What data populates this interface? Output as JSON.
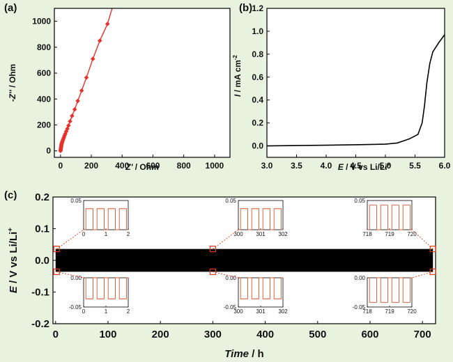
{
  "colors": {
    "background": "#e8f3df",
    "eis_line": "#e8302a",
    "trace": "#000000",
    "inset_line": "#d9532a",
    "zoom_marker": "#e03a1e"
  },
  "chart_data": [
    {
      "panel": "(a)",
      "type": "scatter",
      "xlabel_main": "Z'",
      "xlabel_unit": " / Ohm",
      "ylabel_main": "-Z''",
      "ylabel_unit": " / Ohm",
      "xlim": [
        -40,
        1100
      ],
      "ylim": [
        -50,
        1100
      ],
      "xticks": [
        0,
        200,
        400,
        600,
        800,
        1000
      ],
      "yticks": [
        0,
        200,
        400,
        600,
        800,
        1000
      ],
      "x": [
        0,
        1,
        2,
        3,
        4,
        5,
        6,
        8,
        10,
        12,
        15,
        18,
        22,
        26,
        31,
        37,
        44,
        52,
        62,
        75,
        92,
        112,
        137,
        168,
        210,
        255,
        305
      ],
      "y": [
        0,
        8,
        16,
        24,
        32,
        40,
        48,
        56,
        64,
        72,
        82,
        92,
        104,
        118,
        132,
        150,
        170,
        195,
        228,
        270,
        320,
        385,
        465,
        565,
        710,
        850,
        980
      ],
      "line_extends_to": [
        335,
        1100
      ]
    },
    {
      "panel": "(b)",
      "type": "line",
      "xlabel": "E / V vs Li/Li+",
      "ylabel": "I /  mA cm-2",
      "xlim": [
        3.0,
        6.0
      ],
      "ylim": [
        -0.1,
        1.2
      ],
      "xticks": [
        3.0,
        3.5,
        4.0,
        4.5,
        5.0,
        5.5,
        6.0
      ],
      "yticks": [
        0.0,
        0.2,
        0.4,
        0.6,
        0.8,
        1.0,
        1.2
      ],
      "x": [
        3.0,
        3.5,
        4.0,
        4.5,
        5.0,
        5.2,
        5.4,
        5.55,
        5.62,
        5.66,
        5.7,
        5.75,
        5.8,
        5.9,
        6.0
      ],
      "y": [
        0.0,
        0.003,
        0.006,
        0.01,
        0.015,
        0.025,
        0.06,
        0.1,
        0.2,
        0.35,
        0.55,
        0.72,
        0.82,
        0.9,
        0.97
      ]
    },
    {
      "panel": "(c)",
      "type": "line",
      "xlabel": "Time / h",
      "ylabel": "E / V vs Li/Li+",
      "xlim": [
        -5,
        725
      ],
      "ylim": [
        -0.2,
        0.2
      ],
      "xticks": [
        0,
        100,
        200,
        300,
        400,
        500,
        600,
        700
      ],
      "yticks": [
        -0.2,
        -0.1,
        0.0,
        0.1,
        0.2
      ],
      "band": {
        "x_start": 0,
        "x_end": 720,
        "upper": 0.036,
        "lower": -0.036
      },
      "zoom_marks_x": [
        2,
        300,
        720
      ],
      "insets": [
        {
          "xticks": [
            0,
            1,
            2
          ],
          "xlim": [
            0,
            2
          ],
          "ylim": [
            0,
            0.05
          ],
          "yticks": [
            0.05
          ],
          "upper_level": 0.036
        },
        {
          "xticks": [
            300,
            301,
            302
          ],
          "xlim": [
            300,
            302
          ],
          "ylim": [
            0,
            0.05
          ],
          "yticks": [
            0.05
          ],
          "upper_level": 0.036
        },
        {
          "xticks": [
            718,
            719,
            720
          ],
          "xlim": [
            718,
            720
          ],
          "ylim": [
            0,
            0.05
          ],
          "yticks": [
            0.05
          ],
          "upper_level": 0.042
        },
        {
          "xticks": [
            0,
            1,
            2
          ],
          "xlim": [
            0,
            2
          ],
          "ylim": [
            -0.05,
            0.0
          ],
          "yticks": [
            0.0,
            -0.05
          ],
          "lower_level": -0.036
        },
        {
          "xticks": [
            300,
            301,
            302
          ],
          "xlim": [
            300,
            302
          ],
          "ylim": [
            -0.05,
            0.0
          ],
          "yticks": [
            0.0,
            -0.05
          ],
          "lower_level": -0.036
        },
        {
          "xticks": [
            718,
            719,
            720
          ],
          "xlim": [
            718,
            720
          ],
          "ylim": [
            -0.05,
            0.0
          ],
          "yticks": [
            0.0,
            -0.05
          ],
          "lower_level": -0.042
        }
      ]
    }
  ]
}
